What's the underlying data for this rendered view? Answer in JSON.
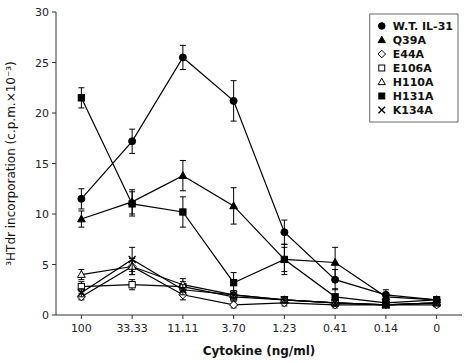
{
  "chart_data": {
    "type": "line",
    "xlabel": "Cytokine (ng/ml)",
    "ylabel": "³HTdr incorporation (c.p.m.×10⁻³)",
    "categories": [
      "100",
      "33.33",
      "11.11",
      "3.70",
      "1.23",
      "0.41",
      "0.14",
      "0"
    ],
    "color": "black",
    "series": [
      {
        "name": "W.T. IL-31",
        "marker": "filled-circle",
        "values": [
          11.5,
          17.2,
          25.5,
          21.2,
          8.2,
          3.5,
          2.0,
          1.5
        ],
        "errors": [
          1.0,
          1.2,
          1.2,
          2.0,
          1.2,
          1.0,
          0.5,
          0.3
        ]
      },
      {
        "name": "Q39A",
        "marker": "filled-triangle",
        "values": [
          9.5,
          11.2,
          13.8,
          10.8,
          5.5,
          5.2,
          1.8,
          1.5
        ],
        "errors": [
          0.8,
          1.2,
          1.5,
          1.8,
          1.2,
          1.5,
          0.4,
          0.3
        ]
      },
      {
        "name": "E44A",
        "marker": "open-diamond",
        "values": [
          1.8,
          4.8,
          2.0,
          1.0,
          1.2,
          1.0,
          1.0,
          1.0
        ],
        "errors": [
          0.3,
          0.8,
          0.5,
          0.3,
          0.3,
          0.3,
          0.2,
          0.2
        ]
      },
      {
        "name": "E106A",
        "marker": "open-square",
        "values": [
          2.8,
          3.0,
          2.8,
          1.8,
          1.5,
          1.2,
          1.0,
          1.2
        ],
        "errors": [
          0.5,
          0.5,
          0.5,
          0.4,
          0.3,
          0.3,
          0.2,
          0.2
        ]
      },
      {
        "name": "H110A",
        "marker": "open-triangle",
        "values": [
          4.0,
          4.8,
          3.0,
          2.0,
          1.5,
          1.2,
          1.0,
          1.2
        ],
        "errors": [
          0.5,
          0.8,
          0.6,
          0.4,
          0.3,
          0.3,
          0.2,
          0.2
        ]
      },
      {
        "name": "H131A",
        "marker": "filled-square",
        "values": [
          21.5,
          11.0,
          10.2,
          3.2,
          5.5,
          1.8,
          1.2,
          1.5
        ],
        "errors": [
          1.0,
          1.2,
          1.5,
          1.0,
          1.5,
          0.8,
          0.4,
          0.3
        ]
      },
      {
        "name": "K134A",
        "marker": "x",
        "values": [
          2.2,
          5.5,
          2.5,
          2.0,
          1.5,
          1.2,
          1.0,
          1.2
        ],
        "errors": [
          0.4,
          1.2,
          0.5,
          0.4,
          0.3,
          0.3,
          0.2,
          0.2
        ]
      }
    ],
    "ylim": [
      0,
      30
    ],
    "yticks": [
      0,
      5,
      10,
      15,
      20,
      25,
      30
    ],
    "legend": "upper right"
  }
}
